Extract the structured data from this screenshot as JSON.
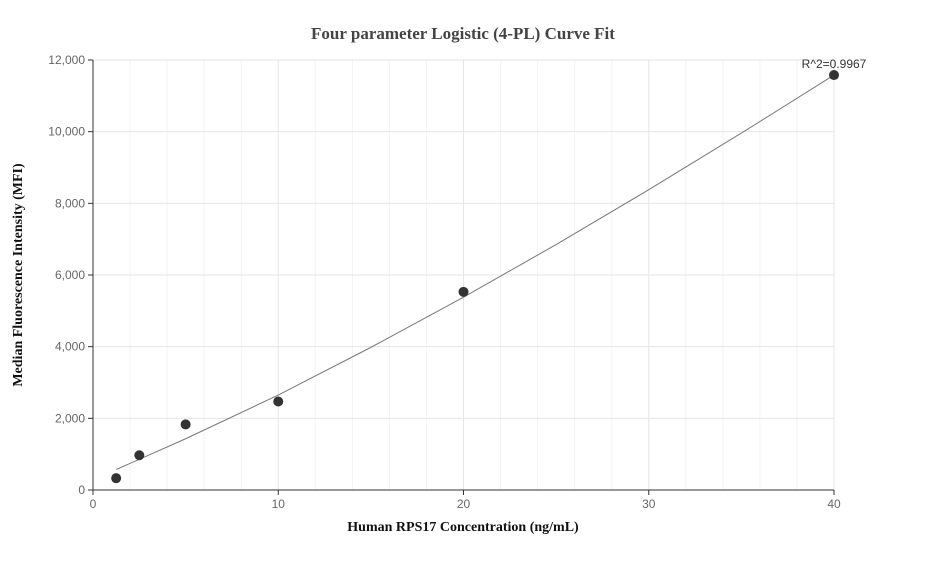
{
  "chart_data": {
    "type": "scatter",
    "title": "Four parameter Logistic (4-PL) Curve Fit",
    "xlabel": "Human RPS17 Concentration (ng/mL)",
    "ylabel": "Median Fluorescence Intensity (MFI)",
    "xlim": [
      0,
      40
    ],
    "ylim": [
      0,
      12000
    ],
    "x_ticks": [
      0,
      10,
      20,
      30,
      40
    ],
    "x_tick_labels": [
      "0",
      "10",
      "20",
      "30",
      "40"
    ],
    "y_ticks": [
      0,
      2000,
      4000,
      6000,
      8000,
      10000,
      12000
    ],
    "y_tick_labels": [
      "0",
      "2,000",
      "4,000",
      "6,000",
      "8,000",
      "10,000",
      "12,000"
    ],
    "grid": true,
    "series": [
      {
        "x": [
          1.25,
          2.5,
          5,
          10,
          20,
          40
        ],
        "y": [
          330,
          970,
          1830,
          2470,
          5530,
          11580
        ],
        "color": "#333333"
      }
    ],
    "fit_curve": {
      "x": [
        1.25,
        5,
        10,
        15,
        20,
        25,
        30,
        35,
        40
      ],
      "y": [
        570,
        1430,
        2650,
        3980,
        5380,
        6850,
        8380,
        9960,
        11580
      ],
      "color": "#777777"
    },
    "annotation": "R^2=0.9967"
  }
}
